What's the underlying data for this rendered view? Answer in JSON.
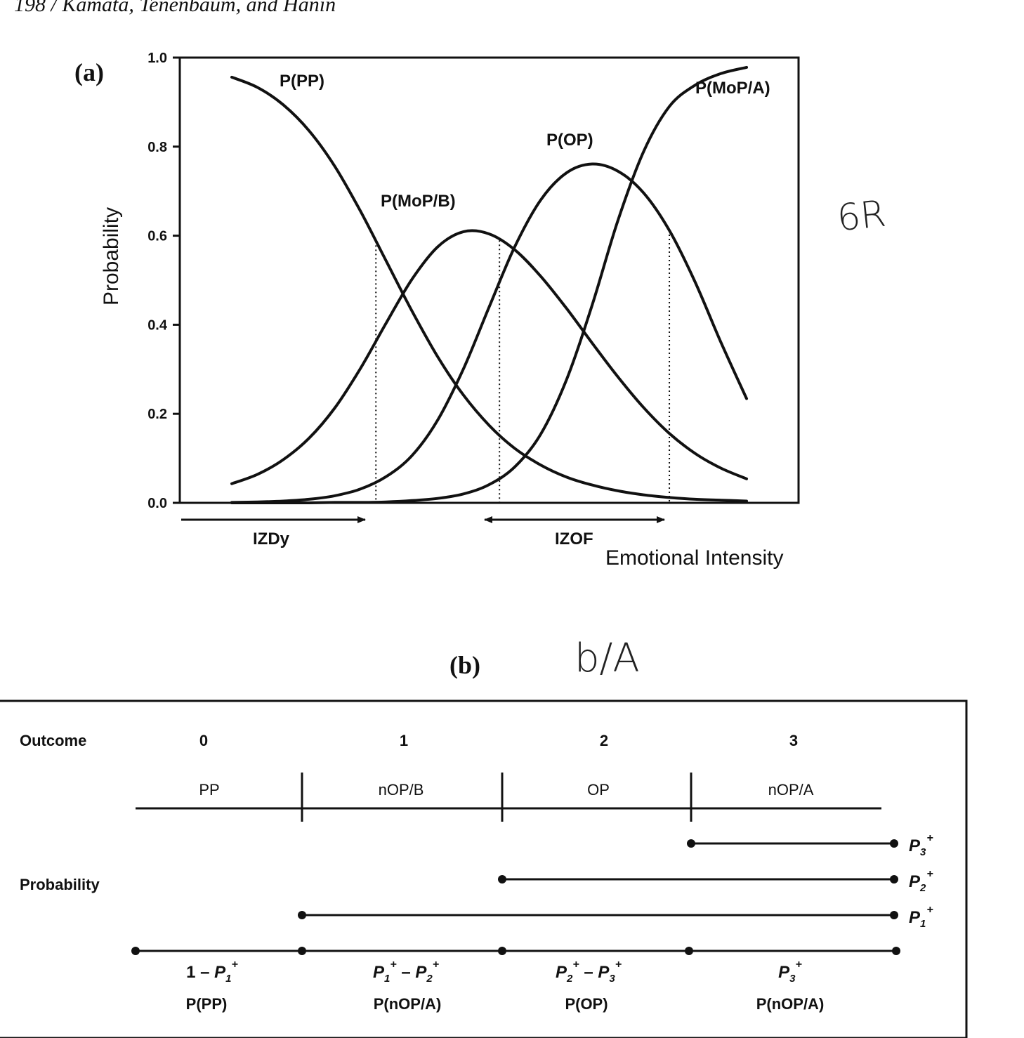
{
  "header": {
    "running_head": "198 / Kamata, Tenenbaum, and Hanin"
  },
  "annotations": {
    "hand_a": "6R",
    "hand_b": "b/A"
  },
  "panel_a": {
    "label": "(a)"
  },
  "panel_b": {
    "label": "(b)"
  },
  "chart_data": [
    {
      "type": "line",
      "xlabel": "Emotional Intensity",
      "ylabel": "Probability",
      "ylim": [
        0.0,
        1.0
      ],
      "yticks": [
        "0.0",
        "0.2",
        "0.4",
        "0.6",
        "0.8",
        "1.0"
      ],
      "grid": false,
      "x": [
        0.0,
        0.05,
        0.1,
        0.15,
        0.2,
        0.25,
        0.3,
        0.35,
        0.4,
        0.45,
        0.5,
        0.55,
        0.6,
        0.65,
        0.7,
        0.75,
        0.8,
        0.85,
        0.9,
        0.95,
        1.0
      ],
      "series": [
        {
          "name": "P(PP)",
          "values": [
            0.956,
            0.933,
            0.894,
            0.836,
            0.756,
            0.655,
            0.543,
            0.431,
            0.328,
            0.242,
            0.174,
            0.122,
            0.085,
            0.058,
            0.04,
            0.027,
            0.018,
            0.012,
            0.008,
            0.006,
            0.004
          ]
        },
        {
          "name": "P(MoP/B)",
          "values": [
            0.043,
            0.064,
            0.097,
            0.145,
            0.213,
            0.302,
            0.404,
            0.502,
            0.575,
            0.609,
            0.604,
            0.568,
            0.509,
            0.437,
            0.359,
            0.283,
            0.214,
            0.156,
            0.111,
            0.078,
            0.054
          ]
        },
        {
          "name": "P(OP)",
          "values": [
            0.001,
            0.002,
            0.004,
            0.008,
            0.016,
            0.031,
            0.059,
            0.106,
            0.186,
            0.301,
            0.44,
            0.576,
            0.68,
            0.741,
            0.761,
            0.745,
            0.696,
            0.612,
            0.496,
            0.361,
            0.234
          ]
        },
        {
          "name": "P(MoP/A)",
          "values": [
            0.0,
            0.0,
            0.0,
            0.0,
            0.001,
            0.001,
            0.002,
            0.005,
            0.01,
            0.02,
            0.041,
            0.081,
            0.154,
            0.276,
            0.444,
            0.634,
            0.789,
            0.89,
            0.938,
            0.964,
            0.978
          ]
        }
      ],
      "annotations": {
        "izdy": "IZDy",
        "izof": "IZOF",
        "crossings_x": [
          0.28,
          0.52,
          0.85
        ]
      }
    },
    {
      "type": "table",
      "outcome_label": "Outcome",
      "probability_label": "Probability",
      "outcomes": [
        "0",
        "1",
        "2",
        "3"
      ],
      "categories": [
        "PP",
        "nOP/B",
        "OP",
        "nOP/A"
      ],
      "cumulative": [
        {
          "name": "P",
          "sub": "3",
          "sup": "+"
        },
        {
          "name": "P",
          "sub": "2",
          "sup": "+"
        },
        {
          "name": "P",
          "sub": "1",
          "sup": "+"
        }
      ],
      "formulas": [
        {
          "t1": "1 – ",
          "n1": "P",
          "s1": "1",
          "p1": "+",
          "t2": "",
          "n2": "",
          "s2": "",
          "p2": ""
        },
        {
          "t1": "",
          "n1": "P",
          "s1": "1",
          "p1": "+",
          "t2": " – ",
          "n2": "P",
          "s2": "2",
          "p2": "+"
        },
        {
          "t1": "",
          "n1": "P",
          "s1": "2",
          "p1": "+",
          "t2": " – ",
          "n2": "P",
          "s2": "3",
          "p2": "+"
        },
        {
          "t1": "",
          "n1": "P",
          "s1": "3",
          "p1": "+",
          "t2": "",
          "n2": "",
          "s2": "",
          "p2": ""
        }
      ],
      "names": [
        "P(PP)",
        "P(nOP/A)",
        "P(OP)",
        "P(nOP/A)"
      ]
    }
  ]
}
